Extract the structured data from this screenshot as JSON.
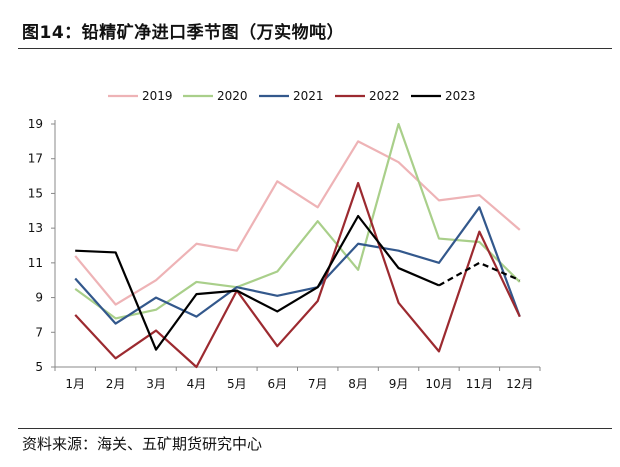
{
  "title": "图14：铅精矿净进口季节图（万实物吨）",
  "source": "资料来源：海关、五矿期货研究中心",
  "chart_data": {
    "type": "line",
    "title": "图14：铅精矿净进口季节图（万实物吨）",
    "xlabel": "",
    "ylabel": "",
    "categories": [
      "1月",
      "2月",
      "3月",
      "4月",
      "5月",
      "6月",
      "7月",
      "8月",
      "9月",
      "10月",
      "11月",
      "12月"
    ],
    "ylim": [
      5,
      19
    ],
    "yticks": [
      5,
      7,
      9,
      11,
      13,
      15,
      17,
      19
    ],
    "legend_position": "top",
    "series": [
      {
        "name": "2019",
        "color": "#eeb3b6",
        "dashed_from": null,
        "values": [
          11.4,
          8.6,
          10.0,
          12.1,
          11.7,
          15.7,
          14.2,
          18.0,
          16.8,
          14.6,
          14.9,
          12.9
        ]
      },
      {
        "name": "2020",
        "color": "#a9cf8a",
        "dashed_from": null,
        "values": [
          9.5,
          7.8,
          8.3,
          9.9,
          9.6,
          10.5,
          13.4,
          10.6,
          19.0,
          12.4,
          12.2,
          9.9
        ]
      },
      {
        "name": "2021",
        "color": "#33588c",
        "dashed_from": null,
        "values": [
          10.1,
          7.5,
          9.0,
          7.9,
          9.6,
          9.1,
          9.6,
          12.1,
          11.7,
          11.0,
          14.2,
          7.9
        ]
      },
      {
        "name": "2022",
        "color": "#9c2a30",
        "dashed_from": null,
        "values": [
          8.0,
          5.5,
          7.1,
          5.0,
          9.4,
          6.2,
          8.8,
          15.6,
          8.7,
          5.9,
          12.8,
          7.9
        ]
      },
      {
        "name": "2023",
        "color": "#000000",
        "dashed_from": 9,
        "values": [
          11.7,
          11.6,
          6.0,
          9.2,
          9.4,
          8.2,
          9.6,
          13.7,
          10.7,
          9.7,
          11.0,
          10.0
        ]
      }
    ]
  }
}
